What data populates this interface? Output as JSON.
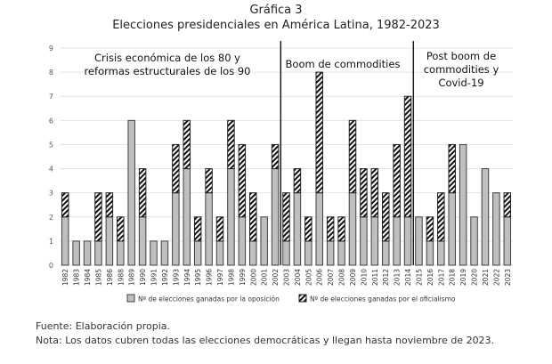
{
  "chart_data": {
    "type": "bar",
    "stacked": true,
    "title": "Gráfica 3",
    "subtitle": "Elecciones presidenciales en América Latina, 1982-2023",
    "xlabel": "",
    "ylabel": "",
    "ylim": [
      0,
      9
    ],
    "yticks": [
      0,
      1,
      2,
      3,
      4,
      5,
      6,
      7,
      8,
      9
    ],
    "grid": true,
    "legend_position": "bottom",
    "categories": [
      "1982",
      "1983",
      "1984",
      "1985",
      "1986",
      "1988",
      "1989",
      "1990",
      "1991",
      "1992",
      "1993",
      "1994",
      "1995",
      "1996",
      "1997",
      "1998",
      "1999",
      "2000",
      "2001",
      "2002",
      "2003",
      "2004",
      "2005",
      "2006",
      "2007",
      "2008",
      "2009",
      "2010",
      "2011",
      "2012",
      "2013",
      "2014",
      "2015",
      "2016",
      "2017",
      "2018",
      "2019",
      "2020",
      "2021",
      "2022",
      "2023"
    ],
    "series": [
      {
        "name": "Nº de elecciones ganadas por la oposición",
        "color": "#bfbfbf",
        "values": [
          2,
          1,
          1,
          1,
          2,
          1,
          6,
          2,
          1,
          1,
          3,
          4,
          1,
          3,
          1,
          4,
          2,
          1,
          2,
          4,
          1,
          3,
          1,
          3,
          1,
          1,
          3,
          2,
          2,
          1,
          2,
          2,
          2,
          1,
          1,
          3,
          5,
          2,
          4,
          3,
          2
        ]
      },
      {
        "name": "Nº de elecciones ganadas por el oficialismo",
        "pattern": "hatched",
        "values": [
          1,
          0,
          0,
          2,
          1,
          1,
          0,
          2,
          0,
          0,
          2,
          2,
          1,
          1,
          1,
          2,
          3,
          2,
          0,
          1,
          2,
          1,
          1,
          5,
          1,
          1,
          3,
          2,
          2,
          2,
          3,
          5,
          0,
          1,
          2,
          2,
          0,
          0,
          0,
          0,
          1
        ]
      }
    ],
    "period_dividers_after": [
      "2002",
      "2014"
    ],
    "annotations": [
      {
        "lines": [
          "Crisis económica de los 80 y",
          "reformas estructurales de los 90"
        ]
      },
      {
        "lines": [
          "Boom de commodities"
        ]
      },
      {
        "lines": [
          "Post boom de",
          "commodities y",
          "Covid-19"
        ]
      }
    ]
  },
  "footer": {
    "source": "Fuente: Elaboración propia.",
    "note": "Nota: Los datos cubren todas las elecciones democráticas y llegan hasta noviembre de 2023."
  }
}
